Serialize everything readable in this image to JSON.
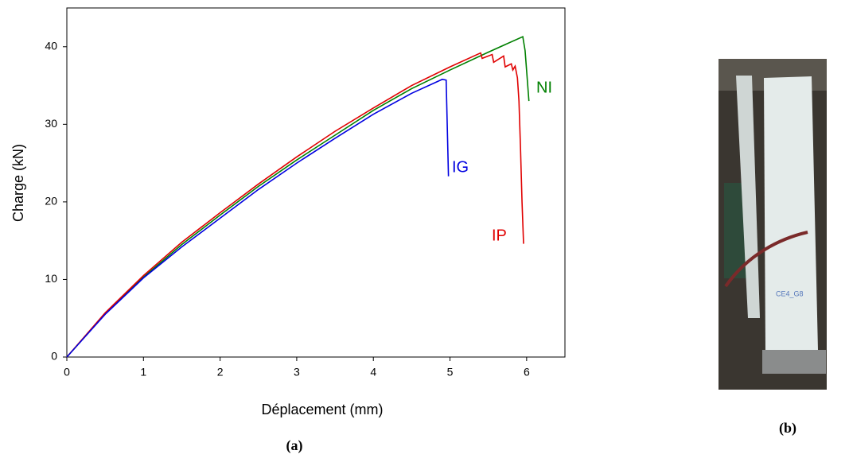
{
  "chart_data": {
    "type": "line",
    "xlabel": "Déplacement (mm)",
    "ylabel": "Charge (kN)",
    "xlim": [
      0,
      6.5
    ],
    "ylim": [
      0,
      45
    ],
    "xticks": [
      0,
      1,
      2,
      3,
      4,
      5,
      6
    ],
    "yticks": [
      0,
      10,
      20,
      30,
      40
    ],
    "caption_a": "(a)",
    "caption_b": "(b)",
    "series": [
      {
        "name": "NI",
        "color": "#008000",
        "x": [
          0,
          0.5,
          1,
          1.5,
          2,
          2.5,
          3,
          3.5,
          4,
          4.5,
          5,
          5.5,
          5.95,
          5.98,
          6.03
        ],
        "values": [
          0,
          5.6,
          10.3,
          14.5,
          18.3,
          22,
          25.4,
          28.6,
          31.8,
          34.6,
          37,
          39.3,
          41.3,
          39.5,
          33
        ]
      },
      {
        "name": "IP",
        "color": "#e00000",
        "x": [
          0,
          0.5,
          1,
          1.5,
          2,
          2.5,
          3,
          3.5,
          4,
          4.5,
          5,
          5.4,
          5.42,
          5.55,
          5.57,
          5.7,
          5.72,
          5.8,
          5.82,
          5.85,
          5.88,
          5.9,
          5.92,
          5.94,
          5.96
        ],
        "values": [
          0,
          5.7,
          10.5,
          14.8,
          18.6,
          22.3,
          25.8,
          29.1,
          32.1,
          35,
          37.4,
          39.2,
          38.5,
          39,
          38,
          38.8,
          37.4,
          37.8,
          37,
          37.5,
          36,
          33,
          27,
          20,
          14.6
        ]
      },
      {
        "name": "IG",
        "color": "#0000e0",
        "x": [
          0,
          0.5,
          1,
          1.5,
          2,
          2.5,
          3,
          3.5,
          4,
          4.5,
          4.9,
          4.95,
          4.98
        ],
        "values": [
          0,
          5.5,
          10.2,
          14.2,
          17.9,
          21.6,
          25,
          28.2,
          31.3,
          34,
          35.8,
          35.7,
          23.3
        ]
      }
    ]
  }
}
